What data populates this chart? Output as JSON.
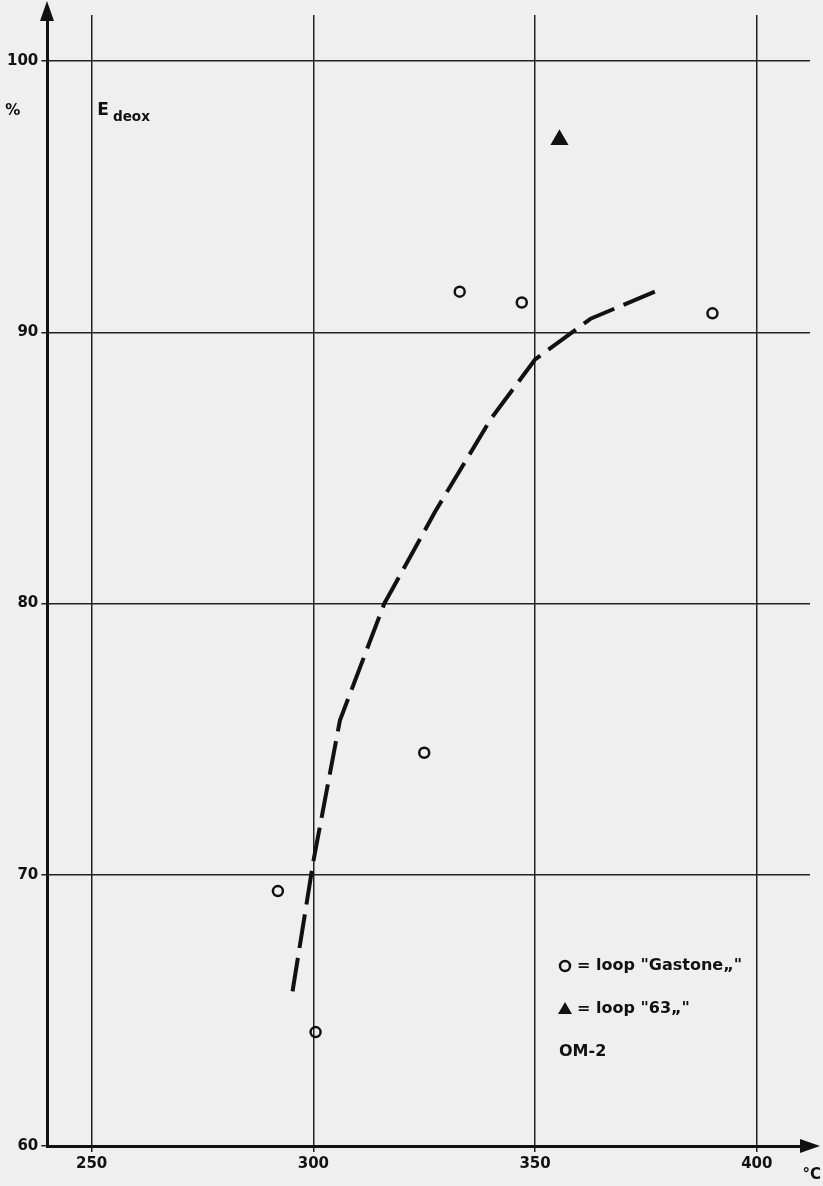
{
  "chart_data": {
    "type": "scatter",
    "title": "E$_{deox}$",
    "xlabel": "°C",
    "ylabel": "%",
    "xlim": [
      240,
      412
    ],
    "ylim": [
      60,
      101.7
    ],
    "xticks": [
      250,
      300,
      350,
      400
    ],
    "yticks": [
      60,
      70,
      80,
      90,
      100
    ],
    "grid": true,
    "legend": "bottom right",
    "annotations": [
      "OM-2"
    ],
    "series": [
      {
        "name": "= loop \"Gastone„\"",
        "color": "#111111",
        "marker": "circle",
        "x": [
          292,
          300.5,
          325,
          333,
          347,
          390
        ],
        "values": [
          69.4,
          64.2,
          74.5,
          91.5,
          91.1,
          90.7
        ]
      },
      {
        "name": "= loop \"63„\"",
        "color": "#111111",
        "marker": "triangle",
        "x": [
          355.5
        ],
        "values": [
          97.1
        ]
      },
      {
        "type": "line",
        "color": "#111111",
        "marker": "none",
        "line_style": "dashed",
        "x": [
          295.3,
          300,
          306,
          316,
          327.5,
          340,
          350,
          362.5,
          378.5
        ],
        "values": [
          65.7,
          70.5,
          75.7,
          80,
          83.4,
          86.8,
          89,
          90.5,
          91.6
        ]
      }
    ]
  }
}
